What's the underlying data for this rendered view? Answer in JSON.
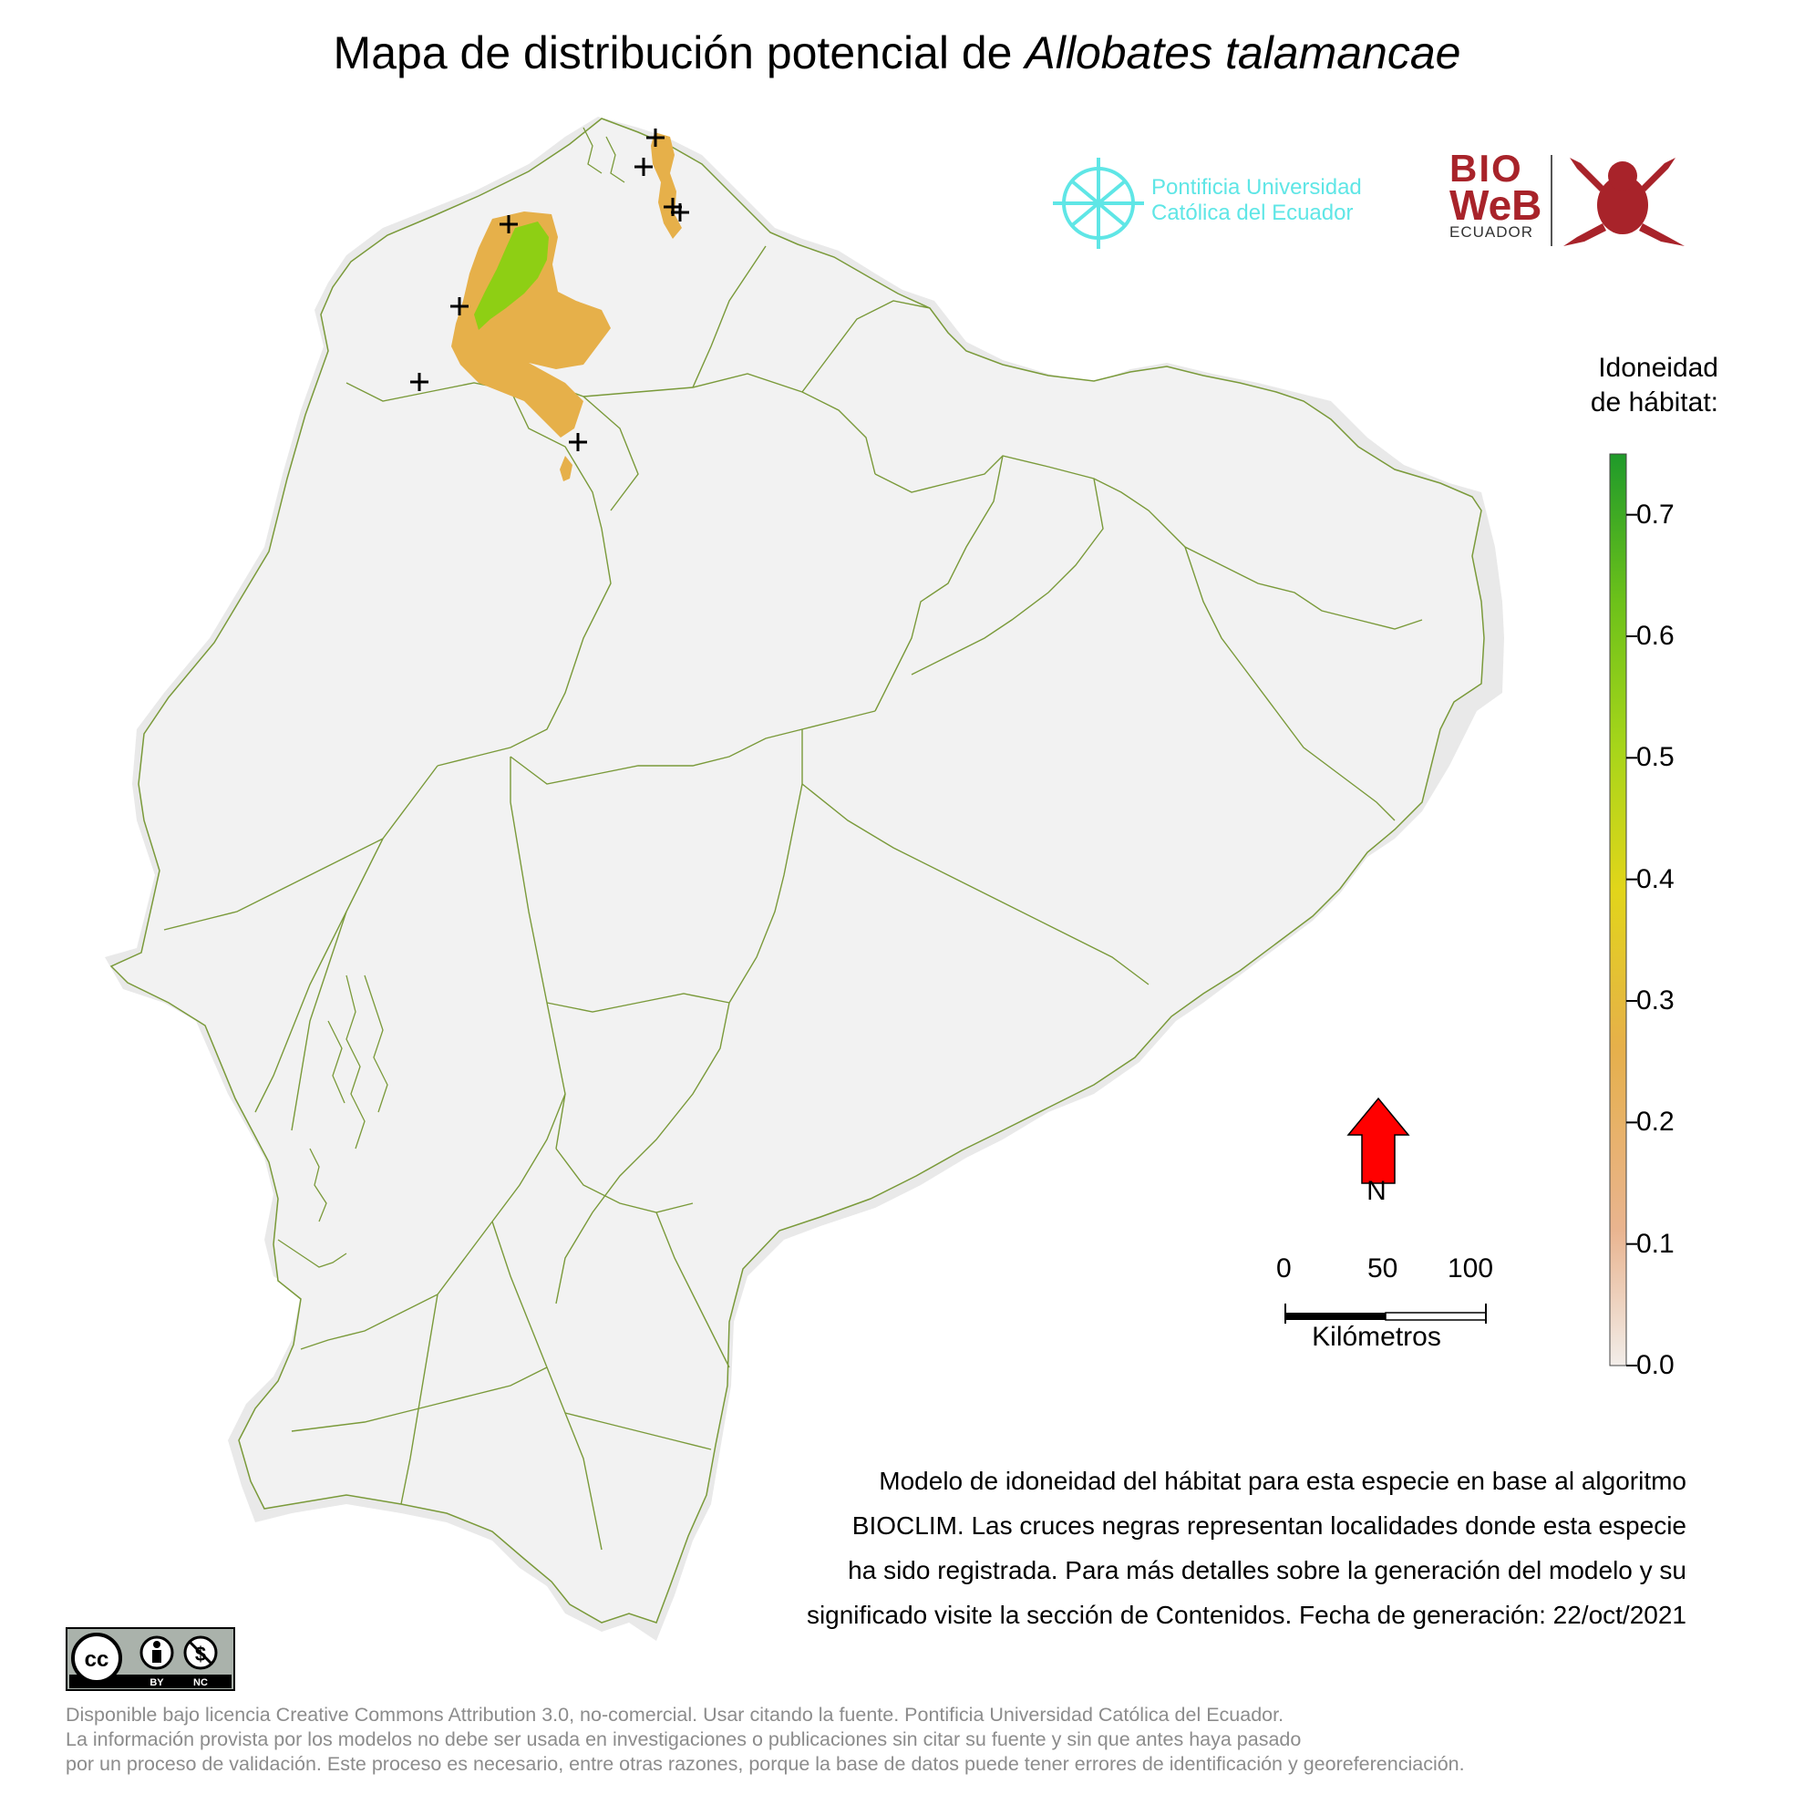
{
  "title": {
    "prefix": "Mapa de distribución potencial de",
    "species": "Allobates talamancae"
  },
  "logos": {
    "puce_line1": "Pontificia Universidad",
    "puce_line2": "Católica del Ecuador",
    "bioweb_line1": "BIO",
    "bioweb_line2": "WeB",
    "bioweb_line3": "ECUADOR"
  },
  "legend": {
    "title_line1": "Idoneidad",
    "title_line2": "de hábitat:",
    "ticks": [
      "0.7",
      "0.6",
      "0.5",
      "0.4",
      "0.3",
      "0.2",
      "0.1",
      "0.0"
    ],
    "tick_values": [
      0.7,
      0.6,
      0.5,
      0.4,
      0.3,
      0.2,
      0.1,
      0.0
    ],
    "max": 0.75,
    "colors": [
      "#f2ede9",
      "#e9b48f",
      "#e6b04a",
      "#e2d51a",
      "#a6d51a",
      "#6cc11a",
      "#1f9a2a"
    ]
  },
  "north": {
    "label": "N",
    "color": "#ff0000"
  },
  "scale": {
    "labels": [
      "0",
      "50",
      "100"
    ],
    "unit": "Kilómetros"
  },
  "description": {
    "line1": "Modelo de idoneidad del hábitat para esta especie en base al algoritmo",
    "line2": "BIOCLIM. Las cruces negras representan localidades donde esta especie",
    "line3": "ha sido registrada. Para más detalles sobre la generación del modelo y su",
    "line4": "significado visite la sección de Contenidos. Fecha de generación: 22/oct/2021"
  },
  "license_badge": {
    "by": "BY",
    "nc": "NC"
  },
  "footer": {
    "line1": "Disponible bajo licencia Creative Commons Attribution 3.0, no-comercial. Usar citando la fuente. Pontificia Universidad Católica del Ecuador.",
    "line2": "La información provista por los modelos no debe ser usada en investigaciones o publicaciones sin citar su fuente y sin que antes haya pasado",
    "line3": "por un proceso de validación. Este proceso es necesario, entre otras razones, porque la base de datos puede tener errores de identificación y georeferenciación."
  },
  "map_colors": {
    "land": "#f2f2f2",
    "halo": "#e9e9e9",
    "borders": "#7a9a3a",
    "suitability_mid": "#e6b04a",
    "suitability_high": "#8ecf14",
    "locality_marker": "#000000"
  },
  "localities_count": 8
}
